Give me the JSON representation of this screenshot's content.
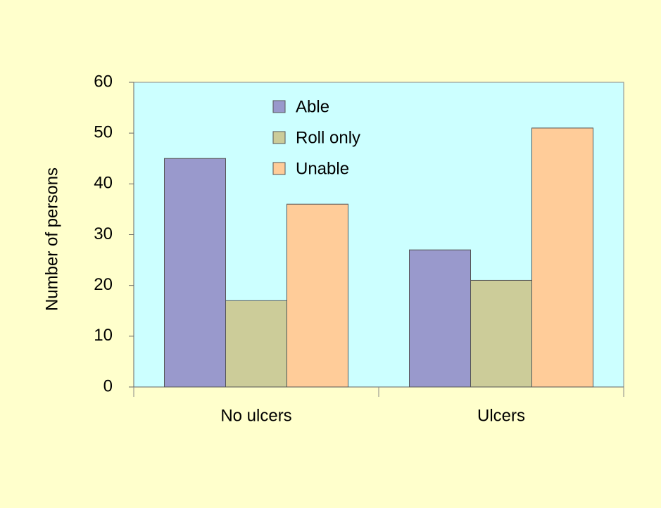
{
  "chart_data": {
    "type": "bar",
    "y_label": "Number of persons",
    "categories": [
      "No ulcers",
      "Ulcers"
    ],
    "series": [
      {
        "name": "Able",
        "color": "#9999cc",
        "values": [
          45,
          27
        ]
      },
      {
        "name": "Roll only",
        "color": "#cccc99",
        "values": [
          17,
          21
        ]
      },
      {
        "name": "Unable",
        "color": "#ffcc99",
        "values": [
          36,
          51
        ]
      }
    ],
    "ylim": [
      0,
      60
    ],
    "yticks": [
      0,
      10,
      20,
      30,
      40,
      50,
      60
    ]
  }
}
